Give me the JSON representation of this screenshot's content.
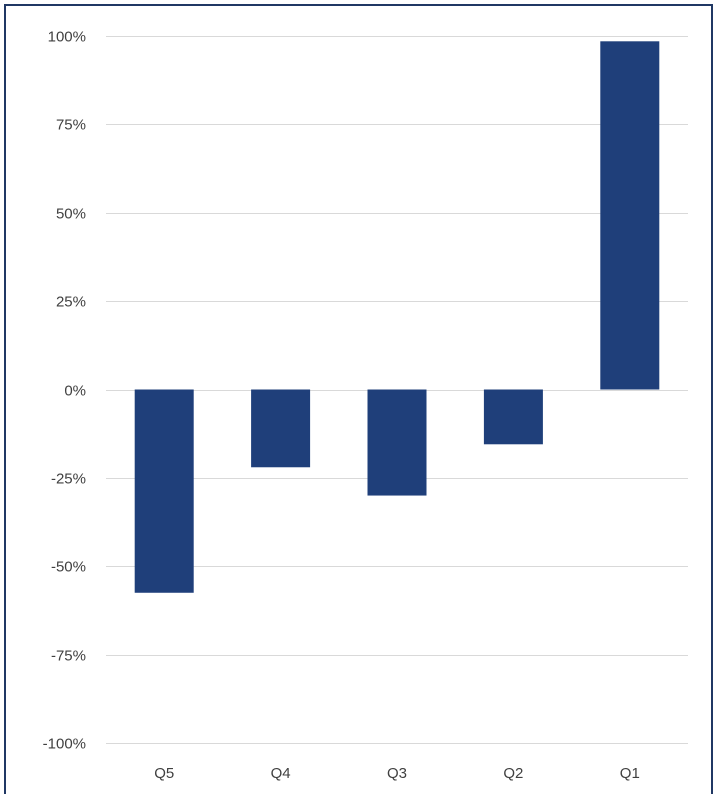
{
  "chart_data": {
    "type": "bar",
    "categories": [
      "Q5",
      "Q4",
      "Q3",
      "Q2",
      "Q1"
    ],
    "values": [
      -0.575,
      -0.22,
      -0.3,
      -0.155,
      0.985
    ],
    "ylim": [
      -1.0,
      1.0
    ],
    "yticks": [
      1.0,
      0.75,
      0.5,
      0.25,
      0.0,
      -0.25,
      -0.5,
      -0.75,
      -1.0
    ],
    "ytick_labels": [
      "100%",
      "75%",
      "50%",
      "25%",
      "0%",
      "-25%",
      "-50%",
      "-75%",
      "-100%"
    ],
    "title": "",
    "xlabel": "",
    "ylabel": "",
    "grid": true,
    "legend": false,
    "bar_color": "#1f3f7a",
    "border_color": "#203864"
  }
}
